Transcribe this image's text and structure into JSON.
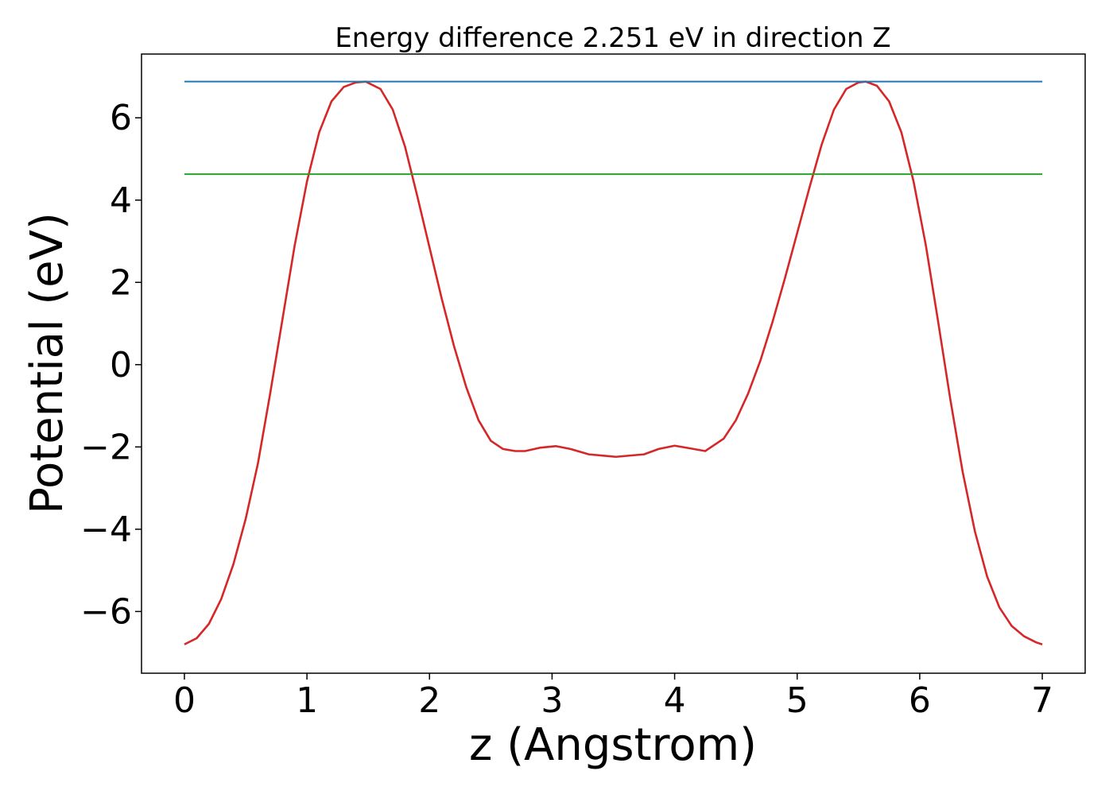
{
  "chart_data": {
    "type": "line",
    "title": "Energy difference 2.251 eV in direction Z",
    "xlabel": "z (Angstrom)",
    "ylabel": "Potential (eV)",
    "xlim": [
      -0.35,
      7.35
    ],
    "ylim": [
      -7.5,
      7.55
    ],
    "xticks": [
      0,
      1,
      2,
      3,
      4,
      5,
      6,
      7
    ],
    "xtick_labels": [
      "0",
      "1",
      "2",
      "3",
      "4",
      "5",
      "6",
      "7"
    ],
    "yticks": [
      -6,
      -4,
      -2,
      0,
      2,
      4,
      6
    ],
    "ytick_labels": [
      "−6",
      "−4",
      "−2",
      "0",
      "2",
      "4",
      "6"
    ],
    "grid": false,
    "legend": "none",
    "series": [
      {
        "color": "#d62728",
        "x": [
          0.0,
          0.1,
          0.2,
          0.3,
          0.4,
          0.5,
          0.6,
          0.7,
          0.8,
          0.9,
          1.0,
          1.1,
          1.2,
          1.3,
          1.4,
          1.48,
          1.6,
          1.7,
          1.8,
          1.9,
          2.0,
          2.1,
          2.2,
          2.3,
          2.4,
          2.5,
          2.6,
          2.7,
          2.78,
          2.9,
          3.03,
          3.15,
          3.3,
          3.52,
          3.75,
          3.87,
          4.0,
          4.1,
          4.25,
          4.4,
          4.5,
          4.6,
          4.7,
          4.8,
          4.9,
          5.0,
          5.1,
          5.2,
          5.3,
          5.4,
          5.5,
          5.56,
          5.65,
          5.75,
          5.85,
          5.95,
          6.05,
          6.15,
          6.25,
          6.35,
          6.45,
          6.55,
          6.65,
          6.75,
          6.85,
          6.95,
          7.0
        ],
        "y": [
          -6.8,
          -6.65,
          -6.3,
          -5.7,
          -4.85,
          -3.75,
          -2.4,
          -0.7,
          1.1,
          2.9,
          4.45,
          5.65,
          6.4,
          6.75,
          6.86,
          6.88,
          6.7,
          6.2,
          5.3,
          4.1,
          2.85,
          1.6,
          0.45,
          -0.55,
          -1.35,
          -1.85,
          -2.05,
          -2.1,
          -2.1,
          -2.02,
          -1.98,
          -2.05,
          -2.18,
          -2.24,
          -2.18,
          -2.05,
          -1.97,
          -2.02,
          -2.1,
          -1.8,
          -1.35,
          -0.7,
          0.1,
          1.05,
          2.1,
          3.2,
          4.3,
          5.35,
          6.2,
          6.7,
          6.86,
          6.88,
          6.78,
          6.4,
          5.65,
          4.45,
          2.9,
          1.05,
          -0.85,
          -2.6,
          -4.05,
          -5.15,
          -5.9,
          -6.35,
          -6.6,
          -6.75,
          -6.8
        ]
      },
      {
        "color": "#1f77b4",
        "x": [
          0,
          7
        ],
        "y": [
          6.88,
          6.88
        ]
      },
      {
        "color": "#2ca02c",
        "x": [
          0,
          7
        ],
        "y": [
          4.63,
          4.63
        ]
      }
    ]
  }
}
